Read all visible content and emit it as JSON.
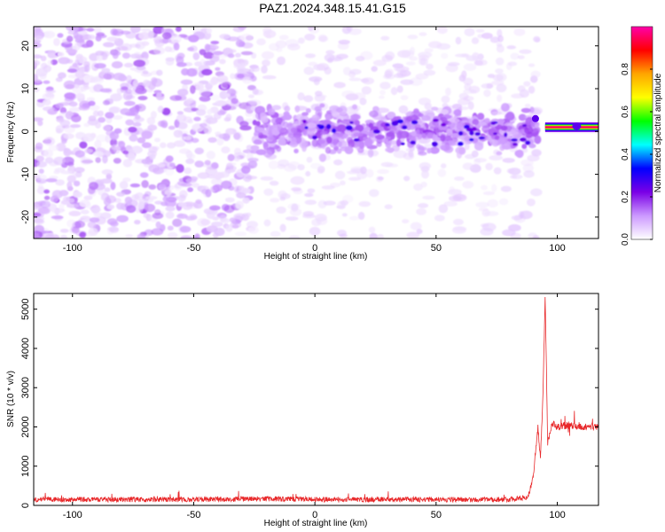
{
  "chart_data": [
    {
      "type": "heatmap",
      "title": "PAZ1.2024.348.15.41.G15",
      "xlabel": "Height of straight line (km)",
      "ylabel": "Frequency (Hz)",
      "xlim": [
        -116,
        117
      ],
      "ylim": [
        -25,
        24.5
      ],
      "xticks": [
        "-100",
        "-50",
        "0",
        "50",
        "100"
      ],
      "xtick_values": [
        -100,
        -50,
        0,
        50,
        100
      ],
      "yticks": [
        "20",
        "10",
        "0",
        "-10",
        "-20"
      ],
      "ytick_values": [
        20,
        10,
        0,
        -10,
        -20
      ],
      "colorbar": {
        "label": "Normalized spectral amplitude",
        "range": [
          0,
          1
        ],
        "ticks": [
          "0.0",
          "0.2",
          "0.4",
          "0.6",
          "0.8"
        ],
        "tick_values": [
          0.0,
          0.2,
          0.4,
          0.6,
          0.8
        ],
        "stops": [
          "#ffffff",
          "#cc99ff",
          "#7a00e6",
          "#0000ff",
          "#00ffff",
          "#00ff00",
          "#ffff00",
          "#ffa500",
          "#ff0000",
          "#ff00aa"
        ]
      },
      "features": [
        {
          "description": "scattered noise",
          "x_range": [
            -116,
            -25
          ],
          "y_range": [
            -25,
            24.5
          ],
          "amplitude": 0.08
        },
        {
          "description": "signal band",
          "x_range": [
            -25,
            92
          ],
          "y_range": [
            -7,
            7
          ],
          "amplitude": 0.15
        },
        {
          "description": "strong tone",
          "x_range": [
            95,
            117
          ],
          "y_center": 1,
          "amplitude": 0.95
        }
      ]
    },
    {
      "type": "line",
      "xlabel": "Height of straight line (km)",
      "ylabel": "SNR (10 * v/v)",
      "xlim": [
        -116,
        117
      ],
      "ylim": [
        0,
        5400
      ],
      "xticks": [
        "-100",
        "-50",
        "0",
        "50",
        "100"
      ],
      "xtick_values": [
        -100,
        -50,
        0,
        50,
        100
      ],
      "yticks": [
        "0",
        "1000",
        "2000",
        "3000",
        "4000",
        "5000"
      ],
      "ytick_values": [
        0,
        1000,
        2000,
        3000,
        4000,
        5000
      ],
      "line_color": "#e8282a",
      "series": [
        {
          "x": [
            -116,
            -100,
            -80,
            -60,
            -40,
            -20,
            0,
            20,
            40,
            60,
            80,
            88,
            90,
            92,
            93,
            94,
            95,
            96,
            98,
            100,
            105,
            110,
            117
          ],
          "y": [
            150,
            150,
            150,
            150,
            160,
            170,
            150,
            150,
            150,
            150,
            150,
            200,
            700,
            2000,
            1200,
            2600,
            5400,
            1600,
            2100,
            2000,
            2050,
            2000,
            2000
          ]
        }
      ]
    }
  ]
}
